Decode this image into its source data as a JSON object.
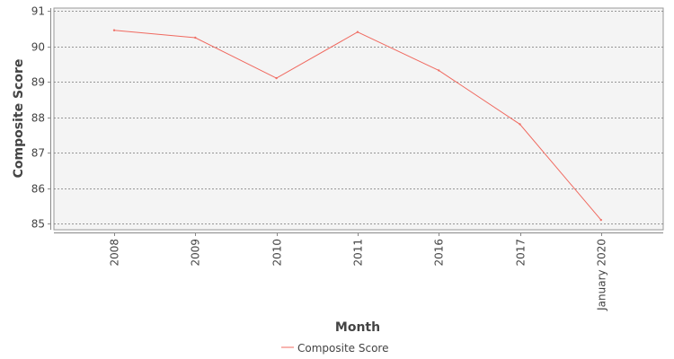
{
  "chart_data": {
    "type": "line",
    "title": "",
    "xlabel": "Month",
    "ylabel": "Composite Score",
    "categories": [
      "2008",
      "2009",
      "2010",
      "2011",
      "2016",
      "2017",
      "January 2020"
    ],
    "ylim": [
      85,
      91
    ],
    "yticks": [
      85,
      86,
      87,
      88,
      89,
      90,
      91
    ],
    "grid": true,
    "legend_position": "bottom-center",
    "series": [
      {
        "name": "Composite Score",
        "color": "#f06a60",
        "values": [
          90.45,
          90.24,
          89.1,
          90.4,
          89.32,
          87.8,
          85.1
        ]
      }
    ]
  }
}
